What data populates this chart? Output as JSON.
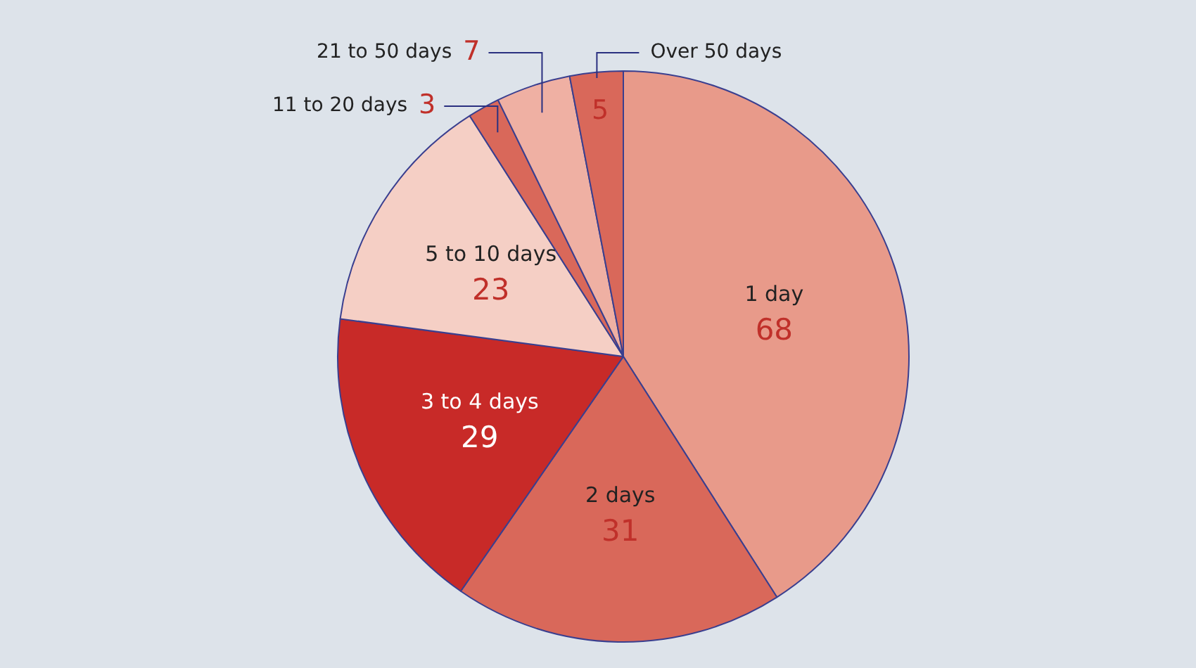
{
  "chart_data": {
    "type": "pie",
    "categories": [
      "1 day",
      "2 days",
      "3 to 4 days",
      "5 to 10 days",
      "11 to 20 days",
      "21 to 50 days",
      "Over 50 days"
    ],
    "values": [
      68,
      31,
      29,
      23,
      3,
      7,
      5
    ],
    "colors": [
      "#e89a8a",
      "#d9685a",
      "#c82a28",
      "#f5cfc5",
      "#d9685a",
      "#efb0a3",
      "#d9685a"
    ],
    "data_labels": true,
    "legend": false
  }
}
